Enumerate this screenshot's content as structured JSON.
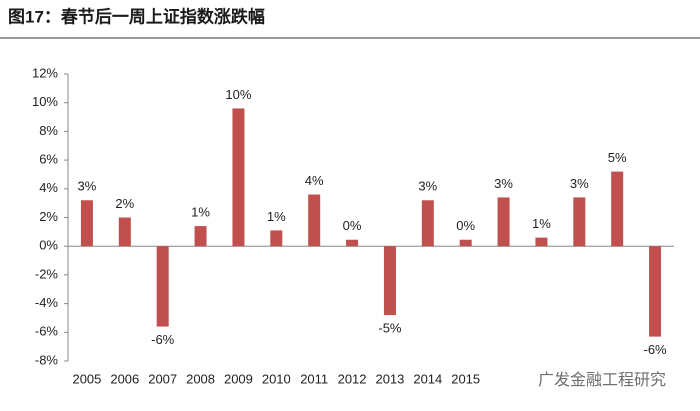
{
  "chart_data": {
    "type": "bar",
    "title": "图17：春节后一周上证指数涨跌幅",
    "categories": [
      "2005",
      "2006",
      "2007",
      "2008",
      "2009",
      "2010",
      "2011",
      "2012",
      "2013",
      "2014",
      "2015",
      null,
      null,
      null,
      null,
      null
    ],
    "values": [
      3.2,
      2.0,
      -5.6,
      1.4,
      9.6,
      1.1,
      3.6,
      0.45,
      -4.8,
      3.2,
      0.45,
      3.4,
      0.6,
      3.4,
      5.2,
      -6.3
    ],
    "value_labels": [
      "3%",
      "2%",
      "-6%",
      "1%",
      "10%",
      "1%",
      "4%",
      "0%",
      "-5%",
      "3%",
      "0%",
      "3%",
      "1%",
      "3%",
      "5%",
      "-6%"
    ],
    "color": "#c0504d",
    "ylim": [
      -8,
      12
    ],
    "yticks": [
      {
        "value": -8,
        "label": "-8%"
      },
      {
        "value": -6,
        "label": "-6%"
      },
      {
        "value": -4,
        "label": "-4%"
      },
      {
        "value": -2,
        "label": "-2%"
      },
      {
        "value": 0,
        "label": "0%"
      },
      {
        "value": 2,
        "label": "2%"
      },
      {
        "value": 4,
        "label": "4%"
      },
      {
        "value": 6,
        "label": "6%"
      },
      {
        "value": 8,
        "label": "8%"
      },
      {
        "value": 10,
        "label": "10%"
      },
      {
        "value": 12,
        "label": "12%"
      }
    ],
    "grid": false,
    "watermark": "广发金融工程研究"
  }
}
